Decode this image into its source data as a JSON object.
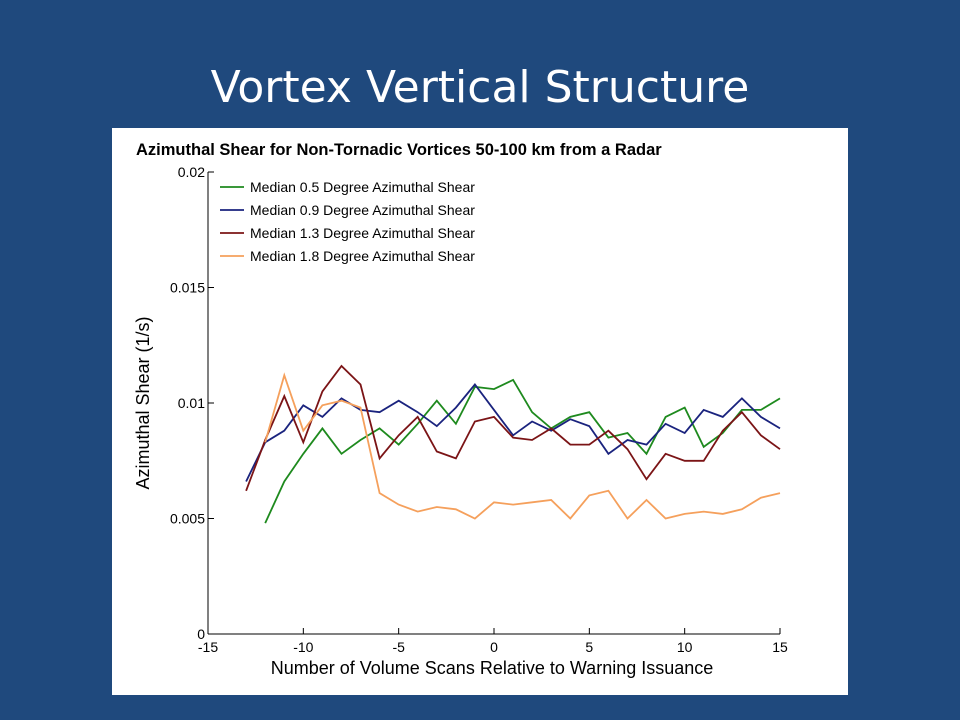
{
  "slide": {
    "title": "Vortex Vertical Structure",
    "background": "#1f497d"
  },
  "chart_data": {
    "type": "line",
    "title": "Azimuthal Shear for Non-Tornadic Vortices 50-100 km from a Radar",
    "xlabel": "Number of Volume Scans Relative to Warning Issuance",
    "ylabel": "Azimuthal Shear (1/s)",
    "xlim": [
      -15,
      15
    ],
    "ylim": [
      0,
      0.02
    ],
    "x_ticks": [
      "-15",
      "-10",
      "-5",
      "0",
      "5",
      "10",
      "15"
    ],
    "y_ticks": [
      "0",
      "0.005",
      "0.01",
      "0.015",
      "0.02"
    ],
    "grid": false,
    "legend_position": "top-left",
    "series": [
      {
        "name": "Median 0.5 Degree Azimuthal Shear",
        "color": "#1e8a1e",
        "x": [
          -12,
          -11,
          -10,
          -9,
          -8,
          -7,
          -6,
          -5,
          -4,
          -3,
          -2,
          -1,
          0,
          1,
          2,
          3,
          4,
          5,
          6,
          7,
          8,
          9,
          10,
          11,
          12,
          13,
          14,
          15
        ],
        "values": [
          0.0048,
          0.0066,
          0.0078,
          0.0089,
          0.0078,
          0.0084,
          0.0089,
          0.0082,
          0.0091,
          0.0101,
          0.0091,
          0.0107,
          0.0106,
          0.011,
          0.0096,
          0.0089,
          0.0094,
          0.0096,
          0.0085,
          0.0087,
          0.0078,
          0.0094,
          0.0098,
          0.0081,
          0.0087,
          0.0097,
          0.0097,
          0.0102
        ]
      },
      {
        "name": "Median 0.9 Degree Azimuthal Shear",
        "color": "#1a237e",
        "x": [
          -13,
          -12,
          -11,
          -10,
          -9,
          -8,
          -7,
          -6,
          -5,
          -4,
          -3,
          -2,
          -1,
          0,
          1,
          2,
          3,
          4,
          5,
          6,
          7,
          8,
          9,
          10,
          11,
          12,
          13,
          14,
          15
        ],
        "values": [
          0.0066,
          0.0083,
          0.0088,
          0.0099,
          0.0094,
          0.0102,
          0.0097,
          0.0096,
          0.0101,
          0.0096,
          0.009,
          0.0098,
          0.0108,
          0.0097,
          0.0086,
          0.0092,
          0.0088,
          0.0093,
          0.009,
          0.0078,
          0.0084,
          0.0082,
          0.0091,
          0.0087,
          0.0097,
          0.0094,
          0.0102,
          0.0094,
          0.0089
        ]
      },
      {
        "name": "Median 1.3 Degree Azimuthal Shear",
        "color": "#7b1416",
        "x": [
          -13,
          -12,
          -11,
          -10,
          -9,
          -8,
          -7,
          -6,
          -5,
          -4,
          -3,
          -2,
          -1,
          0,
          1,
          2,
          3,
          4,
          5,
          6,
          7,
          8,
          9,
          10,
          11,
          12,
          13,
          14,
          15
        ],
        "values": [
          0.0062,
          0.0084,
          0.0103,
          0.0083,
          0.0105,
          0.0116,
          0.0108,
          0.0076,
          0.0086,
          0.0094,
          0.0079,
          0.0076,
          0.0092,
          0.0094,
          0.0085,
          0.0084,
          0.0089,
          0.0082,
          0.0082,
          0.0088,
          0.008,
          0.0067,
          0.0078,
          0.0075,
          0.0075,
          0.0088,
          0.0096,
          0.0086,
          0.008
        ]
      },
      {
        "name": "Median 1.8 Degree Azimuthal Shear",
        "color": "#f5a05c",
        "x": [
          -12,
          -11,
          -10,
          -9,
          -8,
          -7,
          -6,
          -5,
          -4,
          -3,
          -2,
          -1,
          0,
          1,
          2,
          3,
          4,
          5,
          6,
          7,
          8,
          9,
          10,
          11,
          12,
          13,
          14,
          15
        ],
        "values": [
          0.0083,
          0.0112,
          0.0088,
          0.0099,
          0.0101,
          0.0098,
          0.0061,
          0.0056,
          0.0053,
          0.0055,
          0.0054,
          0.005,
          0.0057,
          0.0056,
          0.0057,
          0.0058,
          0.005,
          0.006,
          0.0062,
          0.005,
          0.0058,
          0.005,
          0.0052,
          0.0053,
          0.0052,
          0.0054,
          0.0059,
          0.0061
        ]
      }
    ]
  }
}
